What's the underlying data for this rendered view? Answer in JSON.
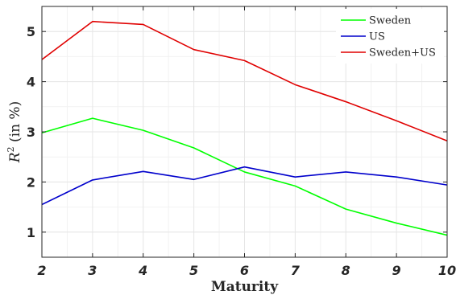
{
  "chart_data": {
    "type": "line",
    "x": [
      2,
      3,
      4,
      5,
      6,
      7,
      8,
      9,
      10
    ],
    "xlabel": "Maturity",
    "ylabel_main": "R",
    "ylabel_sup": "2",
    "ylabel_rest": " (in %)",
    "xlim": [
      2,
      10
    ],
    "ylim": [
      0.5,
      5.5
    ],
    "xticks": [
      2,
      3,
      4,
      5,
      6,
      7,
      8,
      9,
      10
    ],
    "yticks": [
      1,
      2,
      3,
      4,
      5
    ],
    "grid": true,
    "legend_position": "top-right",
    "series": [
      {
        "name": "Sweden",
        "color": "#00ff00",
        "values": [
          2.98,
          3.27,
          3.03,
          2.68,
          2.2,
          1.92,
          1.46,
          1.18,
          0.94
        ]
      },
      {
        "name": "US",
        "color": "#0000cc",
        "values": [
          1.55,
          2.04,
          2.21,
          2.05,
          2.3,
          2.1,
          2.2,
          2.1,
          1.94
        ]
      },
      {
        "name": "Sweden+US",
        "color": "#e00000",
        "values": [
          4.44,
          5.2,
          5.14,
          4.64,
          4.42,
          3.94,
          3.6,
          3.22,
          2.82
        ]
      }
    ]
  }
}
